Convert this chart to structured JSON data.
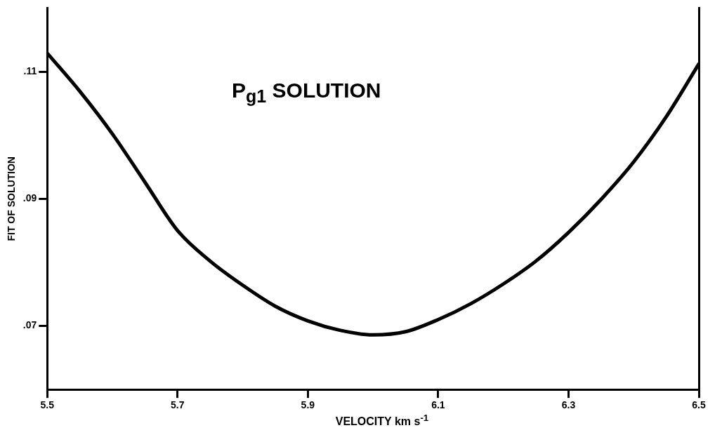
{
  "chart_data": {
    "type": "line",
    "title": "P$_{g1}$ SOLUTION",
    "xlabel": "VELOCITY  km s$^{-1}$",
    "ylabel": "FIT OF SOLUTION",
    "x": [
      5.5,
      5.55,
      5.6,
      5.65,
      5.7,
      5.75,
      5.8,
      5.85,
      5.9,
      5.95,
      6.0,
      6.05,
      6.1,
      6.15,
      6.2,
      6.25,
      6.3,
      6.35,
      6.4,
      6.45,
      6.5
    ],
    "series": [
      {
        "color": "#000000",
        "values": [
          0.1129,
          0.1069,
          0.1002,
          0.0926,
          0.085,
          0.0802,
          0.0764,
          0.0731,
          0.0708,
          0.0693,
          0.0686,
          0.0691,
          0.071,
          0.0735,
          0.0766,
          0.0802,
          0.0847,
          0.0899,
          0.0958,
          0.1029,
          0.1112
        ]
      }
    ],
    "xlim": [
      5.5,
      6.5
    ],
    "xticks": [
      5.5,
      5.7,
      5.9,
      6.1,
      6.3,
      6.5
    ],
    "ylim": [
      0.06,
      0.12
    ],
    "yticks": [
      {
        "value": 0.07,
        "label": ".07"
      },
      {
        "value": 0.09,
        "label": ".09"
      },
      {
        "value": 0.11,
        "label": ".11"
      }
    ],
    "grid": false,
    "legend": false,
    "marker": "none",
    "line_style": "solid"
  }
}
